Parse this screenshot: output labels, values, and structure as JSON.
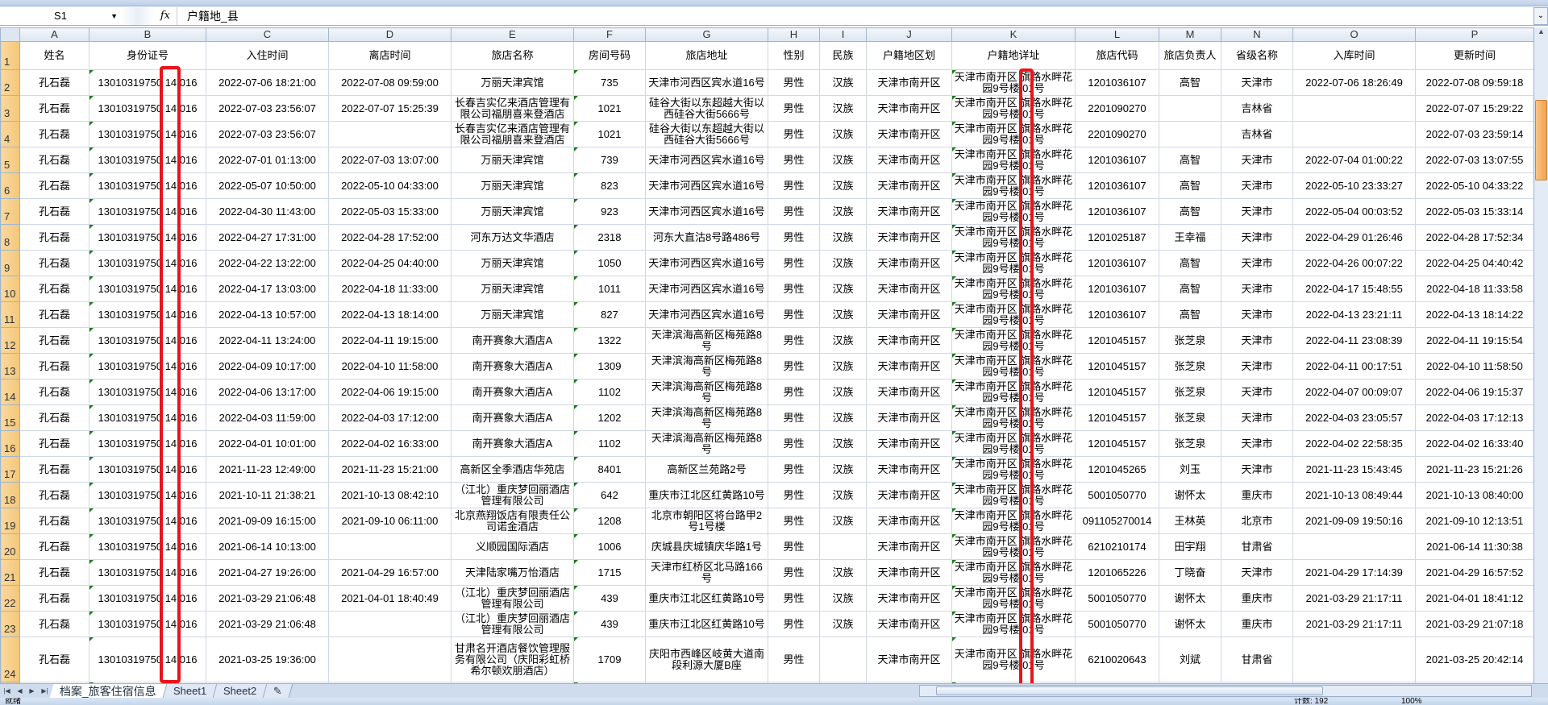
{
  "formula_bar": {
    "name_box": "S1",
    "fx_label": "fx",
    "value": "户籍地_县"
  },
  "columns": [
    "A",
    "B",
    "C",
    "D",
    "E",
    "F",
    "G",
    "H",
    "I",
    "J",
    "K",
    "L",
    "M",
    "N",
    "O",
    "P"
  ],
  "headers": [
    "姓名",
    "身份证号",
    "入住时间",
    "离店时间",
    "旅店名称",
    "房间号码",
    "旅店地址",
    "性别",
    "民族",
    "户籍地区划",
    "户籍地详址",
    "旅店代码",
    "旅店负责人",
    "省级名称",
    "入库时间",
    "更新时间"
  ],
  "rows": [
    [
      "孔石磊",
      "13010319750 14 016",
      "2022-07-06 18:21:00",
      "2022-07-08 09:59:00",
      "万丽天津宾馆",
      "735",
      "天津市河西区宾水道16号",
      "男性",
      "汉族",
      "天津市南开区",
      "天津市南开区 旗路水畔花园9号楼 01号",
      "1201036107",
      "高智",
      "天津市",
      "2022-07-06 18:26:49",
      "2022-07-08 09:59:18"
    ],
    [
      "孔石磊",
      "13010319750 14 016",
      "2022-07-03 23:56:07",
      "2022-07-07 15:25:39",
      "长春吉实亿来酒店管理有限公司福朋喜来登酒店",
      "1021",
      "硅谷大街以东超越大街以西硅谷大街5666号",
      "男性",
      "汉族",
      "天津市南开区",
      "天津市南开区 旗路水畔花园9号楼 01号",
      "2201090270",
      "",
      "吉林省",
      "",
      "2022-07-07 15:29:22"
    ],
    [
      "孔石磊",
      "13010319750 14 016",
      "2022-07-03 23:56:07",
      "",
      "长春吉实亿来酒店管理有限公司福朋喜来登酒店",
      "1021",
      "硅谷大街以东超越大街以西硅谷大街5666号",
      "男性",
      "汉族",
      "天津市南开区",
      "天津市南开区 旗路水畔花园9号楼 01号",
      "2201090270",
      "",
      "吉林省",
      "",
      "2022-07-03 23:59:14"
    ],
    [
      "孔石磊",
      "13010319750 14 016",
      "2022-07-01 01:13:00",
      "2022-07-03 13:07:00",
      "万丽天津宾馆",
      "739",
      "天津市河西区宾水道16号",
      "男性",
      "汉族",
      "天津市南开区",
      "天津市南开区 旗路水畔花园9号楼 01号",
      "1201036107",
      "高智",
      "天津市",
      "2022-07-04 01:00:22",
      "2022-07-03 13:07:55"
    ],
    [
      "孔石磊",
      "13010319750 14 016",
      "2022-05-07 10:50:00",
      "2022-05-10 04:33:00",
      "万丽天津宾馆",
      "823",
      "天津市河西区宾水道16号",
      "男性",
      "汉族",
      "天津市南开区",
      "天津市南开区 旗路水畔花园9号楼 01号",
      "1201036107",
      "高智",
      "天津市",
      "2022-05-10 23:33:27",
      "2022-05-10 04:33:22"
    ],
    [
      "孔石磊",
      "13010319750 14 016",
      "2022-04-30 11:43:00",
      "2022-05-03 15:33:00",
      "万丽天津宾馆",
      "923",
      "天津市河西区宾水道16号",
      "男性",
      "汉族",
      "天津市南开区",
      "天津市南开区 旗路水畔花园9号楼 01号",
      "1201036107",
      "高智",
      "天津市",
      "2022-05-04 00:03:52",
      "2022-05-03 15:33:14"
    ],
    [
      "孔石磊",
      "13010319750 14 016",
      "2022-04-27 17:31:00",
      "2022-04-28 17:52:00",
      "河东万达文华酒店",
      "2318",
      "河东大直沽8号路486号",
      "男性",
      "汉族",
      "天津市南开区",
      "天津市南开区 旗路水畔花园9号楼 01号",
      "1201025187",
      "王幸福",
      "天津市",
      "2022-04-29 01:26:46",
      "2022-04-28 17:52:34"
    ],
    [
      "孔石磊",
      "13010319750 14 016",
      "2022-04-22 13:22:00",
      "2022-04-25 04:40:00",
      "万丽天津宾馆",
      "1050",
      "天津市河西区宾水道16号",
      "男性",
      "汉族",
      "天津市南开区",
      "天津市南开区 旗路水畔花园9号楼 01号",
      "1201036107",
      "高智",
      "天津市",
      "2022-04-26 00:07:22",
      "2022-04-25 04:40:42"
    ],
    [
      "孔石磊",
      "13010319750 14 016",
      "2022-04-17 13:03:00",
      "2022-04-18 11:33:00",
      "万丽天津宾馆",
      "1011",
      "天津市河西区宾水道16号",
      "男性",
      "汉族",
      "天津市南开区",
      "天津市南开区 旗路水畔花园9号楼 01号",
      "1201036107",
      "高智",
      "天津市",
      "2022-04-17 15:48:55",
      "2022-04-18 11:33:58"
    ],
    [
      "孔石磊",
      "13010319750 14 016",
      "2022-04-13 10:57:00",
      "2022-04-13 18:14:00",
      "万丽天津宾馆",
      "827",
      "天津市河西区宾水道16号",
      "男性",
      "汉族",
      "天津市南开区",
      "天津市南开区 旗路水畔花园9号楼 01号",
      "1201036107",
      "高智",
      "天津市",
      "2022-04-13 23:21:11",
      "2022-04-13 18:14:22"
    ],
    [
      "孔石磊",
      "13010319750 14 016",
      "2022-04-11 13:24:00",
      "2022-04-11 19:15:00",
      "南开赛象大酒店A",
      "1322",
      "天津滨海高新区梅苑路8号",
      "男性",
      "汉族",
      "天津市南开区",
      "天津市南开区 旗路水畔花园9号楼 01号",
      "1201045157",
      "张芝泉",
      "天津市",
      "2022-04-11 23:08:39",
      "2022-04-11 19:15:54"
    ],
    [
      "孔石磊",
      "13010319750 14 016",
      "2022-04-09 10:17:00",
      "2022-04-10 11:58:00",
      "南开赛象大酒店A",
      "1309",
      "天津滨海高新区梅苑路8号",
      "男性",
      "汉族",
      "天津市南开区",
      "天津市南开区 旗路水畔花园9号楼 01号",
      "1201045157",
      "张芝泉",
      "天津市",
      "2022-04-11 00:17:51",
      "2022-04-10 11:58:50"
    ],
    [
      "孔石磊",
      "13010319750 14 016",
      "2022-04-06 13:17:00",
      "2022-04-06 19:15:00",
      "南开赛象大酒店A",
      "1102",
      "天津滨海高新区梅苑路8号",
      "男性",
      "汉族",
      "天津市南开区",
      "天津市南开区 旗路水畔花园9号楼 01号",
      "1201045157",
      "张芝泉",
      "天津市",
      "2022-04-07 00:09:07",
      "2022-04-06 19:15:37"
    ],
    [
      "孔石磊",
      "13010319750 14 016",
      "2022-04-03 11:59:00",
      "2022-04-03 17:12:00",
      "南开赛象大酒店A",
      "1202",
      "天津滨海高新区梅苑路8号",
      "男性",
      "汉族",
      "天津市南开区",
      "天津市南开区 旗路水畔花园9号楼 01号",
      "1201045157",
      "张芝泉",
      "天津市",
      "2022-04-03 23:05:57",
      "2022-04-03 17:12:13"
    ],
    [
      "孔石磊",
      "13010319750 14 016",
      "2022-04-01 10:01:00",
      "2022-04-02 16:33:00",
      "南开赛象大酒店A",
      "1102",
      "天津滨海高新区梅苑路8号",
      "男性",
      "汉族",
      "天津市南开区",
      "天津市南开区 旗路水畔花园9号楼 01号",
      "1201045157",
      "张芝泉",
      "天津市",
      "2022-04-02 22:58:35",
      "2022-04-02 16:33:40"
    ],
    [
      "孔石磊",
      "13010319750 14 016",
      "2021-11-23 12:49:00",
      "2021-11-23 15:21:00",
      "高新区全季酒店华苑店",
      "8401",
      "高新区兰苑路2号",
      "男性",
      "汉族",
      "天津市南开区",
      "天津市南开区 旗路水畔花园9号楼 01号",
      "1201045265",
      "刘玉",
      "天津市",
      "2021-11-23 15:43:45",
      "2021-11-23 15:21:26"
    ],
    [
      "孔石磊",
      "13010319750 14 016",
      "2021-10-11 21:38:21",
      "2021-10-13 08:42:10",
      "（江北）重庆梦回丽酒店管理有限公司",
      "642",
      "重庆市江北区红黄路10号",
      "男性",
      "汉族",
      "天津市南开区",
      "天津市南开区 旗路水畔花园9号楼 01号",
      "5001050770",
      "谢怀太",
      "重庆市",
      "2021-10-13 08:49:44",
      "2021-10-13 08:40:00"
    ],
    [
      "孔石磊",
      "13010319750 14 016",
      "2021-09-09 16:15:00",
      "2021-09-10 06:11:00",
      "北京燕翔饭店有限责任公司诺金酒店",
      "1208",
      "北京市朝阳区将台路甲2号1号楼",
      "男性",
      "汉族",
      "天津市南开区",
      "天津市南开区 旗路水畔花园9号楼 01号",
      "091105270014",
      "王林英",
      "北京市",
      "2021-09-09 19:50:16",
      "2021-09-10 12:13:51"
    ],
    [
      "孔石磊",
      "13010319750 14 016",
      "2021-06-14 10:13:00",
      "",
      "义顺园国际酒店",
      "1006",
      "庆城县庆城镇庆华路1号",
      "男性",
      "",
      "天津市南开区",
      "天津市南开区 旗路水畔花园9号楼 01号",
      "6210210174",
      "田宇翔",
      "甘肃省",
      "",
      "2021-06-14 11:30:38"
    ],
    [
      "孔石磊",
      "13010319750 14 016",
      "2021-04-27 19:26:00",
      "2021-04-29 16:57:00",
      "天津陆家嘴万怡酒店",
      "1715",
      "天津市红桥区北马路166号",
      "男性",
      "汉族",
      "天津市南开区",
      "天津市南开区 旗路水畔花园9号楼 01号",
      "1201065226",
      "丁晓奋",
      "天津市",
      "2021-04-29 17:14:39",
      "2021-04-29 16:57:52"
    ],
    [
      "孔石磊",
      "13010319750 14 016",
      "2021-03-29 21:06:48",
      "2021-04-01 18:40:49",
      "（江北）重庆梦回丽酒店管理有限公司",
      "439",
      "重庆市江北区红黄路10号",
      "男性",
      "汉族",
      "天津市南开区",
      "天津市南开区 旗路水畔花园9号楼 01号",
      "5001050770",
      "谢怀太",
      "重庆市",
      "2021-03-29 21:17:11",
      "2021-04-01 18:41:12"
    ],
    [
      "孔石磊",
      "13010319750 14 016",
      "2021-03-29 21:06:48",
      "",
      "（江北）重庆梦回丽酒店管理有限公司",
      "439",
      "重庆市江北区红黄路10号",
      "男性",
      "汉族",
      "天津市南开区",
      "天津市南开区 旗路水畔花园9号楼 01号",
      "5001050770",
      "谢怀太",
      "重庆市",
      "2021-03-29 21:17:11",
      "2021-03-29 21:07:18"
    ],
    [
      "孔石磊",
      "13010319750 14 016",
      "2021-03-25 19:36:00",
      "",
      "甘肃名开酒店餐饮管理服务有限公司（庆阳彩虹桥希尔顿欢朋酒店）",
      "1709",
      "庆阳市西峰区岐黄大道南段利源大厦B座",
      "男性",
      "",
      "天津市南开区",
      "天津市南开区 旗路水畔花园9号楼 01号",
      "6210020643",
      "刘斌",
      "甘肃省",
      "",
      "2021-03-25 20:42:14"
    ],
    [
      "",
      "",
      "",
      "",
      "",
      "",
      "",
      "",
      "",
      "",
      "天津市南开区 旗路水畔",
      "",
      "",
      "",
      "",
      ""
    ]
  ],
  "sheet_tabs": [
    "档案_旅客住宿信息",
    "Sheet1",
    "Sheet2"
  ],
  "status": {
    "ready": "就绪",
    "count": "计数: 192",
    "zoom": "100%"
  },
  "highlight_color": "#e8141a"
}
